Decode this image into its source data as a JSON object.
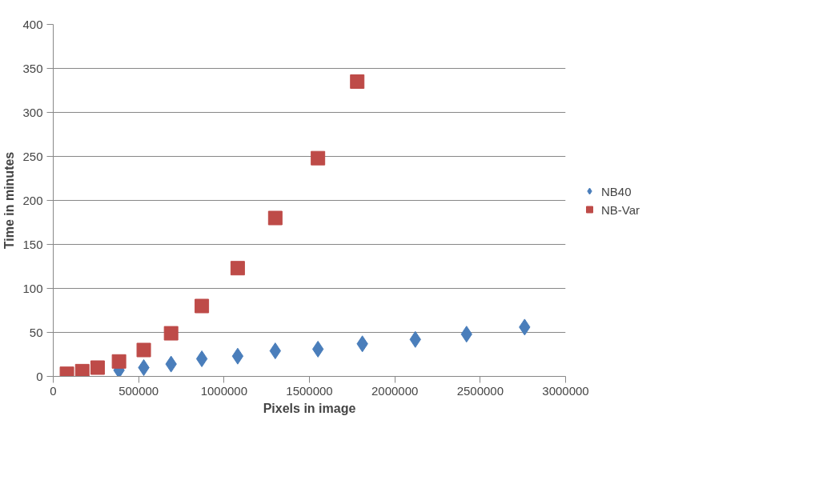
{
  "chart_data": {
    "type": "scatter",
    "xlabel": "Pixels in image",
    "ylabel": "Time in minutes",
    "xlim": [
      0,
      3000000
    ],
    "xticks": [
      0,
      500000,
      1000000,
      1500000,
      2000000,
      2500000,
      3000000
    ],
    "ylim": [
      0,
      400
    ],
    "yticks": [
      0,
      50,
      100,
      150,
      200,
      250,
      300,
      350,
      400
    ],
    "grid": "y",
    "legend": "right",
    "series": [
      {
        "name": "NB40",
        "color": "#4a7ebb",
        "marker": "diamond",
        "x": [
          385000,
          530000,
          690000,
          870000,
          1080000,
          1300000,
          1550000,
          1810000,
          2120000,
          2420000,
          2760000
        ],
        "values": [
          7,
          10,
          14,
          20,
          23,
          29,
          31,
          37,
          42,
          48,
          56
        ]
      },
      {
        "name": "NB-Var",
        "color": "#be4b48",
        "marker": "square",
        "x": [
          80000,
          170000,
          260000,
          385000,
          530000,
          690000,
          870000,
          1080000,
          1300000,
          1550000,
          1780000
        ],
        "values": [
          3,
          6,
          10,
          17,
          30,
          49,
          80,
          123,
          180,
          248,
          335
        ]
      }
    ]
  }
}
